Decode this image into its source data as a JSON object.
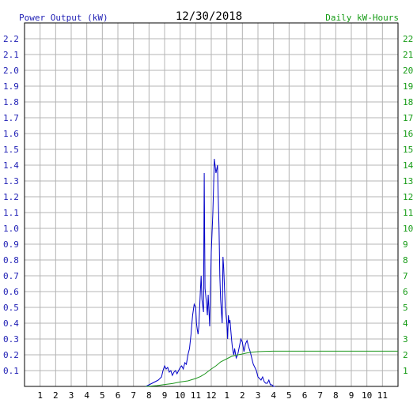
{
  "chart_data": {
    "type": "line",
    "title": "12/30/2018",
    "ylabel": "Power Output (kW)",
    "y2label": "Daily kW-Hours",
    "ylim": [
      0,
      2.3
    ],
    "y2lim": [
      0,
      23
    ],
    "yticks": [
      "0.1",
      "0.2",
      "0.3",
      "0.4",
      "0.5",
      "0.6",
      "0.7",
      "0.8",
      "0.9",
      "1.0",
      "1.1",
      "1.2",
      "1.3",
      "1.4",
      "1.5",
      "1.6",
      "1.7",
      "1.8",
      "1.9",
      "2.0",
      "2.1",
      "2.2"
    ],
    "y2ticks": [
      "1",
      "2",
      "3",
      "4",
      "5",
      "6",
      "7",
      "8",
      "9",
      "10",
      "11",
      "12",
      "13",
      "14",
      "15",
      "16",
      "17",
      "18",
      "19",
      "20",
      "21",
      "22"
    ],
    "xlim": [
      0,
      24
    ],
    "xticks": [
      "1",
      "2",
      "3",
      "4",
      "5",
      "6",
      "7",
      "8",
      "9",
      "10",
      "11",
      "12",
      "1",
      "2",
      "3",
      "4",
      "5",
      "6",
      "7",
      "8",
      "9",
      "10",
      "11"
    ],
    "grid": true,
    "colors": {
      "power": "#0000c8",
      "energy": "#1e961e",
      "grid": "#b4b4b4",
      "left_axis_text": "#1e1eb4",
      "right_axis_text": "#159b15"
    },
    "series": [
      {
        "key": "power",
        "axis": "left",
        "x": [
          7.8,
          8.0,
          8.2,
          8.4,
          8.6,
          8.8,
          8.9,
          9.0,
          9.1,
          9.2,
          9.3,
          9.4,
          9.5,
          9.6,
          9.7,
          9.8,
          9.9,
          10.0,
          10.1,
          10.2,
          10.3,
          10.4,
          10.5,
          10.6,
          10.7,
          10.8,
          10.9,
          11.0,
          11.05,
          11.1,
          11.15,
          11.2,
          11.3,
          11.35,
          11.4,
          11.5,
          11.55,
          11.6,
          11.7,
          11.75,
          11.8,
          11.9,
          12.0,
          12.1,
          12.2,
          12.3,
          12.4,
          12.45,
          12.5,
          12.55,
          12.6,
          12.7,
          12.75,
          12.8,
          12.9,
          13.0,
          13.05,
          13.1,
          13.15,
          13.2,
          13.3,
          13.35,
          13.4,
          13.45,
          13.5,
          13.6,
          13.7,
          13.8,
          13.9,
          14.0,
          14.1,
          14.2,
          14.3,
          14.4,
          14.5,
          14.6,
          14.7,
          14.8,
          14.9,
          15.0,
          15.1,
          15.2,
          15.3,
          15.4,
          15.5,
          15.6,
          15.7,
          15.8,
          15.9,
          16.0,
          16.1
        ],
        "y": [
          0.0,
          0.01,
          0.02,
          0.03,
          0.04,
          0.06,
          0.1,
          0.13,
          0.11,
          0.12,
          0.09,
          0.1,
          0.07,
          0.09,
          0.1,
          0.08,
          0.1,
          0.12,
          0.13,
          0.11,
          0.15,
          0.14,
          0.2,
          0.24,
          0.33,
          0.45,
          0.52,
          0.5,
          0.4,
          0.36,
          0.33,
          0.38,
          0.6,
          0.7,
          0.55,
          0.47,
          1.35,
          0.62,
          0.52,
          0.45,
          0.58,
          0.38,
          0.85,
          1.1,
          1.44,
          1.35,
          1.4,
          1.2,
          1.0,
          0.7,
          0.55,
          0.4,
          0.82,
          0.75,
          0.5,
          0.4,
          0.3,
          0.45,
          0.4,
          0.42,
          0.3,
          0.25,
          0.22,
          0.2,
          0.24,
          0.18,
          0.2,
          0.25,
          0.3,
          0.28,
          0.22,
          0.27,
          0.29,
          0.25,
          0.22,
          0.18,
          0.14,
          0.12,
          0.1,
          0.06,
          0.05,
          0.04,
          0.06,
          0.03,
          0.02,
          0.02,
          0.04,
          0.01,
          0.01,
          0.0,
          0.0
        ]
      },
      {
        "key": "energy",
        "axis": "right",
        "x": [
          7.8,
          8.5,
          9.0,
          9.5,
          10.0,
          10.5,
          11.0,
          11.3,
          11.6,
          12.0,
          12.3,
          12.6,
          13.0,
          13.3,
          13.6,
          14.0,
          14.3,
          14.6,
          15.0,
          15.5,
          16.0,
          24.0
        ],
        "y": [
          0.0,
          0.05,
          0.12,
          0.18,
          0.28,
          0.35,
          0.5,
          0.62,
          0.8,
          1.1,
          1.3,
          1.55,
          1.75,
          1.9,
          1.98,
          2.05,
          2.12,
          2.16,
          2.2,
          2.22,
          2.23,
          2.23
        ]
      }
    ]
  }
}
